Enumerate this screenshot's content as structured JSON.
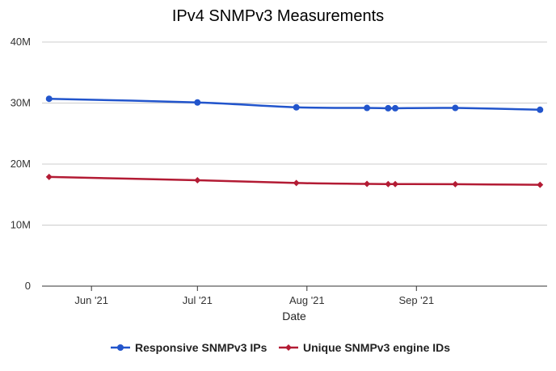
{
  "chart_data": {
    "type": "line",
    "title": "IPv4 SNMPv3 Measurements",
    "xlabel": "Date",
    "ylabel": "",
    "ylim": [
      0,
      40000000
    ],
    "xlim": [
      "2021-05-18",
      "2021-10-08"
    ],
    "y_ticks": [
      "0",
      "10M",
      "20M",
      "30M",
      "40M"
    ],
    "y_tick_values": [
      0,
      10000000,
      20000000,
      30000000,
      40000000
    ],
    "x_ticks": [
      "Jun '21",
      "Jul '21",
      "Aug '21",
      "Sep '21"
    ],
    "x_tick_dates": [
      "2021-06-01",
      "2021-07-01",
      "2021-08-01",
      "2021-09-01"
    ],
    "x": [
      "2021-05-20",
      "2021-07-01",
      "2021-07-29",
      "2021-08-18",
      "2021-08-24",
      "2021-08-26",
      "2021-09-12",
      "2021-10-06"
    ],
    "series": [
      {
        "name": "Responsive SNMPv3 IPs",
        "color": "#2255cc",
        "marker": "circle",
        "values": [
          30700000,
          30100000,
          29300000,
          29200000,
          29150000,
          29150000,
          29200000,
          28900000
        ]
      },
      {
        "name": "Unique SNMPv3 engine IDs",
        "color": "#b31b34",
        "marker": "diamond",
        "values": [
          17900000,
          17350000,
          16900000,
          16750000,
          16720000,
          16720000,
          16700000,
          16600000
        ]
      }
    ],
    "grid": true,
    "legend_position": "bottom"
  }
}
